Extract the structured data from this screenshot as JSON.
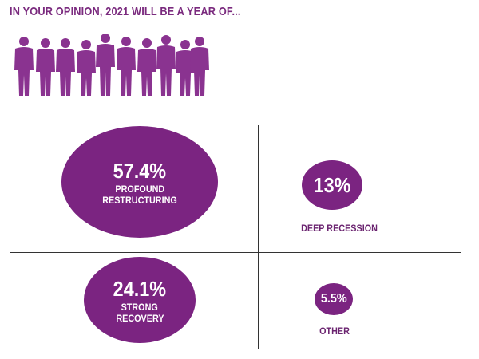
{
  "title": "IN YOUR OPINION, 2021 WILL BE A YEAR OF...",
  "colors": {
    "accent": "#7b2481",
    "people": "#8a3390"
  },
  "icon": "people-silhouettes-icon",
  "chart_data": {
    "type": "bubble",
    "title": "IN YOUR OPINION, 2021 WILL BE A YEAR OF...",
    "items": [
      {
        "value_label": "57.4%",
        "value": 57.4,
        "label": "PROFOUND RESTRUCTURING",
        "label_lines": [
          "PROFOUND",
          "RESTRUCTURING"
        ]
      },
      {
        "value_label": "13%",
        "value": 13,
        "label": "DEEP RECESSION"
      },
      {
        "value_label": "24.1%",
        "value": 24.1,
        "label": "STRONG RECOVERY",
        "label_lines": [
          "STRONG",
          "RECOVERY"
        ]
      },
      {
        "value_label": "5.5%",
        "value": 5.5,
        "label": "OTHER"
      }
    ]
  }
}
